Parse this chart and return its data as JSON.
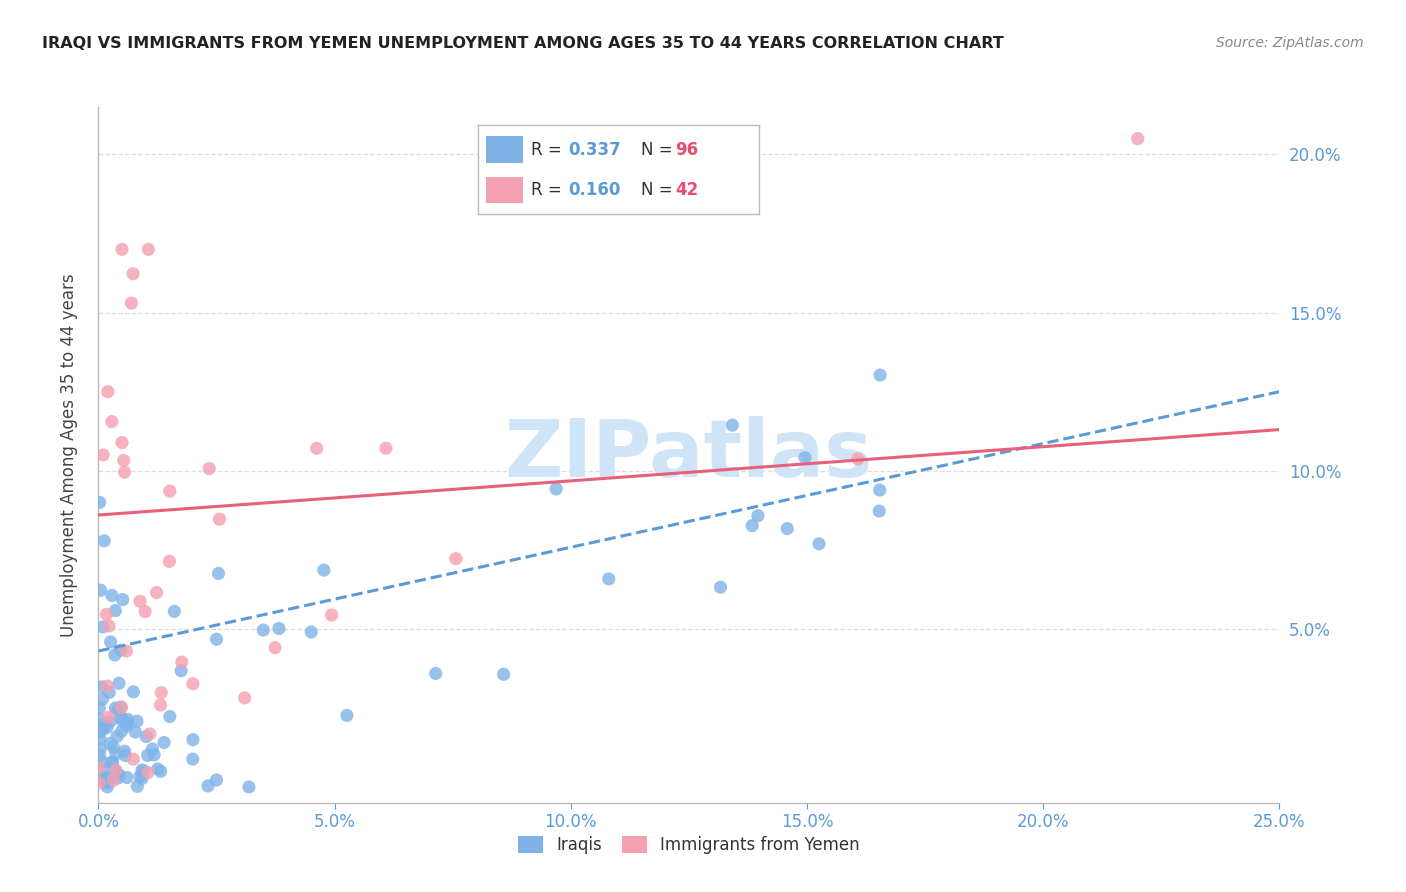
{
  "title": "IRAQI VS IMMIGRANTS FROM YEMEN UNEMPLOYMENT AMONG AGES 35 TO 44 YEARS CORRELATION CHART",
  "source": "Source: ZipAtlas.com",
  "ylabel": "Unemployment Among Ages 35 to 44 years",
  "xlim": [
    0.0,
    0.25
  ],
  "ylim": [
    -0.005,
    0.215
  ],
  "x_ticks": [
    0.0,
    0.05,
    0.1,
    0.15,
    0.2,
    0.25
  ],
  "y_ticks_right": [
    0.05,
    0.1,
    0.15,
    0.2
  ],
  "x_tick_labels": [
    "0.0%",
    "5.0%",
    "10.0%",
    "15.0%",
    "20.0%",
    "25.0%"
  ],
  "y_tick_labels_right": [
    "5.0%",
    "10.0%",
    "15.0%",
    "20.0%"
  ],
  "background_color": "#ffffff",
  "grid_color": "#dddddd",
  "iraqi_color": "#7fb3e8",
  "yemen_color": "#f4a0b0",
  "iraqi_trend_color": "#5b9bd5",
  "yemen_trend_color": "#e8607a",
  "axis_label_color": "#5b9bd5",
  "title_color": "#222222",
  "source_color": "#888888",
  "legend_r_color": "#5b9bd5",
  "legend_n_color": "#e84d6f",
  "watermark_color": "#d0e4f7",
  "iraqi_trend_x": [
    0.0,
    0.25
  ],
  "iraqi_trend_y": [
    0.043,
    0.125
  ],
  "yemen_trend_x": [
    0.0,
    0.25
  ],
  "yemen_trend_y": [
    0.086,
    0.113
  ],
  "iraqi_seed": 12,
  "yemen_seed": 7
}
